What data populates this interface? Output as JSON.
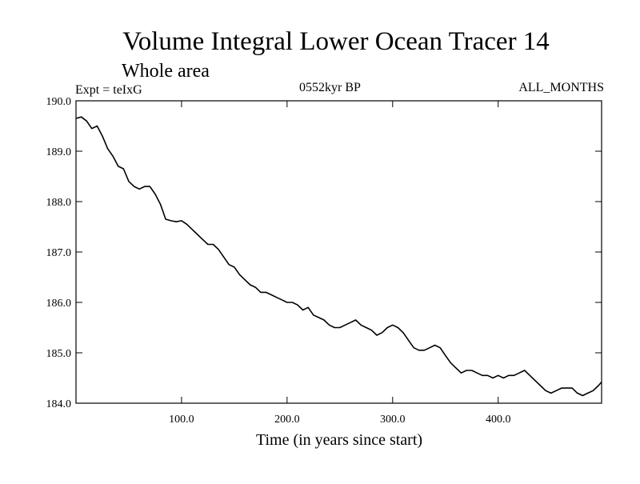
{
  "chart_data": {
    "type": "line",
    "title": "Volume Integral Lower Ocean Tracer 14",
    "subtitle": "Whole area",
    "expt_label": "Expt = teIxG",
    "period_label": "0552kyr BP",
    "months_label": "ALL_MONTHS",
    "xlabel": "Time (in years since start)",
    "ylabel": "",
    "xlim": [
      0,
      498
    ],
    "ylim": [
      184.0,
      190.0
    ],
    "x_ticks": [
      100,
      200,
      300,
      400
    ],
    "x_tick_labels": [
      "100.0",
      "200.0",
      "300.0",
      "400.0"
    ],
    "y_ticks": [
      184,
      185,
      186,
      187,
      188,
      189,
      190
    ],
    "y_tick_labels": [
      "184.0",
      "185.0",
      "186.0",
      "187.0",
      "188.0",
      "189.0",
      "190.0"
    ],
    "grid": false,
    "line_color": "#000000",
    "series": [
      {
        "x": [
          0,
          5,
          10,
          15,
          20,
          25,
          30,
          35,
          40,
          45,
          50,
          55,
          60,
          65,
          70,
          75,
          80,
          85,
          90,
          95,
          100,
          105,
          110,
          115,
          120,
          125,
          130,
          135,
          140,
          145,
          150,
          155,
          160,
          165,
          170,
          175,
          180,
          185,
          190,
          195,
          200,
          205,
          210,
          215,
          220,
          225,
          230,
          235,
          240,
          245,
          250,
          255,
          260,
          265,
          270,
          275,
          280,
          285,
          290,
          295,
          300,
          305,
          310,
          315,
          320,
          325,
          330,
          335,
          340,
          345,
          350,
          355,
          360,
          365,
          370,
          375,
          380,
          385,
          390,
          395,
          400,
          405,
          410,
          415,
          420,
          425,
          430,
          435,
          440,
          445,
          450,
          455,
          460,
          465,
          470,
          475,
          480,
          485,
          490,
          495,
          498
        ],
        "y": [
          189.65,
          189.68,
          189.6,
          189.45,
          189.5,
          189.3,
          189.05,
          188.9,
          188.7,
          188.65,
          188.4,
          188.3,
          188.25,
          188.3,
          188.3,
          188.15,
          187.95,
          187.65,
          187.62,
          187.6,
          187.62,
          187.55,
          187.45,
          187.35,
          187.25,
          187.15,
          187.15,
          187.05,
          186.9,
          186.75,
          186.7,
          186.55,
          186.45,
          186.35,
          186.3,
          186.2,
          186.2,
          186.15,
          186.1,
          186.05,
          186.0,
          186.0,
          185.95,
          185.85,
          185.9,
          185.75,
          185.7,
          185.65,
          185.55,
          185.5,
          185.5,
          185.55,
          185.6,
          185.65,
          185.55,
          185.5,
          185.45,
          185.35,
          185.4,
          185.5,
          185.55,
          185.5,
          185.4,
          185.25,
          185.1,
          185.05,
          185.05,
          185.1,
          185.15,
          185.1,
          184.95,
          184.8,
          184.7,
          184.6,
          184.65,
          184.65,
          184.6,
          184.55,
          184.55,
          184.5,
          184.55,
          184.5,
          184.55,
          184.55,
          184.6,
          184.65,
          184.55,
          184.45,
          184.35,
          184.25,
          184.2,
          184.25,
          184.3,
          184.3,
          184.3,
          184.2,
          184.15,
          184.2,
          184.25,
          184.35,
          184.42
        ]
      }
    ]
  }
}
